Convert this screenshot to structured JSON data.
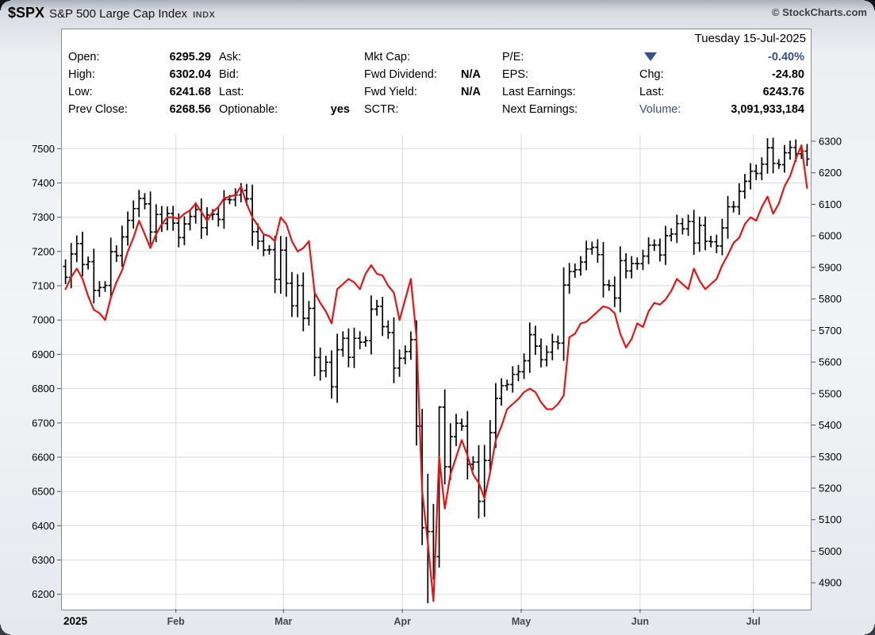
{
  "header": {
    "symbol": "$SPX",
    "name": "S&P 500 Large Cap Index",
    "exchange": "INDX",
    "credit": "© StockCharts.com"
  },
  "quote_panel": {
    "date": "Tuesday 15-Jul-2025",
    "col1": [
      {
        "label": "Open:",
        "value": "6295.29"
      },
      {
        "label": "High:",
        "value": "6302.04"
      },
      {
        "label": "Low:",
        "value": "6241.68"
      },
      {
        "label": "Prev Close:",
        "value": "6268.56"
      }
    ],
    "col2": [
      {
        "label": "Ask:",
        "value": ""
      },
      {
        "label": "Bid:",
        "value": ""
      },
      {
        "label": "Last:",
        "value": ""
      },
      {
        "label": "Optionable:",
        "value": "yes"
      }
    ],
    "col3": [
      {
        "label": "Mkt Cap:",
        "value": ""
      },
      {
        "label": "Fwd Dividend:",
        "value": "N/A"
      },
      {
        "label": "Fwd Yield:",
        "value": "N/A"
      },
      {
        "label": "SCTR:",
        "value": ""
      }
    ],
    "col4": [
      {
        "label": "P/E:",
        "value": ""
      },
      {
        "label": "EPS:",
        "value": ""
      },
      {
        "label": "Last Earnings:",
        "value": ""
      },
      {
        "label": "Next Earnings:",
        "value": ""
      }
    ],
    "col5": [
      {
        "label": "",
        "value": "-0.40%",
        "icon": "down-triangle"
      },
      {
        "label": "Chg:",
        "value": "-24.80"
      },
      {
        "label": "Last:",
        "value": "6243.76"
      },
      {
        "label": "Volume:",
        "value": "3,091,933,184"
      }
    ]
  },
  "chart_data": {
    "type": "ohlc",
    "title": "$SPX S&P 500 Large Cap Index INDX",
    "date_shown": "Tuesday 15-Jul-2025",
    "grid": true,
    "colors": {
      "bars": "#000000",
      "overlay": "#e81414",
      "grid": "#d8dadd",
      "change_navy": "#33518f"
    },
    "left_axis": {
      "min": 6160,
      "max": 7540,
      "ticks": [
        6200,
        6300,
        6400,
        6500,
        6600,
        6700,
        6800,
        6900,
        7000,
        7100,
        7200,
        7300,
        7400,
        7500
      ]
    },
    "right_axis": {
      "min": 4820,
      "max": 6320,
      "ticks": [
        4900,
        5000,
        5100,
        5200,
        5300,
        5400,
        5500,
        5600,
        5700,
        5800,
        5900,
        6000,
        6100,
        6200,
        6300
      ]
    },
    "x_axis": {
      "labels": [
        "2025",
        "Feb",
        "Mar",
        "Apr",
        "May",
        "Jun",
        "Jul"
      ],
      "month_start_indices": [
        0,
        20,
        39,
        60,
        81,
        102,
        122
      ]
    },
    "spx": {
      "name": "S&P 500 ($SPX) daily OHLC, right axis",
      "first_open": 5903.3,
      "closes": [
        5868.6,
        5942.5,
        5975.4,
        5909.0,
        5918.3,
        5827.0,
        5836.2,
        5842.9,
        5949.9,
        5937.3,
        5996.7,
        6049.2,
        6086.4,
        6118.7,
        6101.2,
        6012.3,
        6067.7,
        6039.3,
        6071.2,
        6040.5,
        5994.6,
        6037.9,
        6061.5,
        6083.6,
        6026.0,
        6066.4,
        6068.5,
        6052.0,
        6115.1,
        6114.6,
        6129.6,
        6144.2,
        6117.5,
        6013.1,
        5983.3,
        5955.3,
        5956.1,
        5861.6,
        5954.5,
        5849.7,
        5778.2,
        5842.6,
        5738.5,
        5770.2,
        5614.6,
        5572.1,
        5599.3,
        5521.5,
        5638.9,
        5675.1,
        5614.7,
        5675.3,
        5662.9,
        5667.6,
        5767.6,
        5776.7,
        5712.2,
        5693.3,
        5580.9,
        5611.9,
        5633.1,
        5671.0,
        5396.5,
        5074.1,
        5062.3,
        4982.8,
        5456.9,
        5268.1,
        5363.4,
        5406.0,
        5396.6,
        5275.7,
        5282.7,
        5158.2,
        5287.8,
        5375.9,
        5484.8,
        5525.2,
        5528.8,
        5560.8,
        5569.1,
        5604.1,
        5686.7,
        5650.4,
        5606.9,
        5631.3,
        5663.9,
        5659.9,
        5844.2,
        5886.6,
        5892.6,
        5916.9,
        5958.4,
        5963.6,
        5940.5,
        5844.6,
        5842.0,
        5802.8,
        5921.5,
        5888.6,
        5912.2,
        5911.7,
        5935.9,
        5970.4,
        5970.8,
        5939.3,
        6000.4,
        6005.9,
        6038.8,
        6022.2,
        6045.3,
        5977.0,
        6033.1,
        5982.7,
        5980.9,
        5967.8,
        6025.2,
        6092.2,
        6092.2,
        6141.0,
        6173.1,
        6205.0,
        6198.0,
        6227.4,
        6279.4,
        6230.0,
        6225.5,
        6263.3,
        6280.5,
        6259.8,
        6268.6,
        6243.8
      ],
      "hl_overrides": {
        "64": [
          4835,
          5246
        ],
        "65": [
          4910,
          5150
        ],
        "66": [
          4948,
          5460
        ]
      }
    },
    "overlay": {
      "name": "red comparison line, left axis",
      "anchors": [
        [
          0,
          7090
        ],
        [
          2,
          7150
        ],
        [
          5,
          7030
        ],
        [
          7,
          7000
        ],
        [
          9,
          7110
        ],
        [
          11,
          7200
        ],
        [
          13,
          7290
        ],
        [
          15,
          7210
        ],
        [
          17,
          7280
        ],
        [
          19,
          7300
        ],
        [
          21,
          7310
        ],
        [
          23,
          7340
        ],
        [
          25,
          7290
        ],
        [
          27,
          7330
        ],
        [
          29,
          7360
        ],
        [
          31,
          7390
        ],
        [
          33,
          7300
        ],
        [
          35,
          7250
        ],
        [
          37,
          7230
        ],
        [
          38,
          7300
        ],
        [
          39,
          7280
        ],
        [
          41,
          7200
        ],
        [
          43,
          7230
        ],
        [
          44,
          7080
        ],
        [
          45,
          7050
        ],
        [
          47,
          6990
        ],
        [
          48,
          7090
        ],
        [
          50,
          7120
        ],
        [
          52,
          7090
        ],
        [
          54,
          7160
        ],
        [
          56,
          7130
        ],
        [
          58,
          7080
        ],
        [
          59,
          7000
        ],
        [
          60,
          7060
        ],
        [
          61,
          7120
        ],
        [
          62,
          6950
        ],
        [
          63,
          6500
        ],
        [
          64,
          6350
        ],
        [
          65,
          6180
        ],
        [
          66,
          6600
        ],
        [
          67,
          6450
        ],
        [
          68,
          6550
        ],
        [
          70,
          6650
        ],
        [
          72,
          6550
        ],
        [
          74,
          6480
        ],
        [
          76,
          6650
        ],
        [
          78,
          6740
        ],
        [
          80,
          6770
        ],
        [
          82,
          6800
        ],
        [
          84,
          6760
        ],
        [
          86,
          6740
        ],
        [
          88,
          6780
        ],
        [
          89,
          6950
        ],
        [
          91,
          6990
        ],
        [
          93,
          7010
        ],
        [
          95,
          7040
        ],
        [
          97,
          7020
        ],
        [
          98,
          6960
        ],
        [
          99,
          6920
        ],
        [
          101,
          6990
        ],
        [
          102,
          6980
        ],
        [
          104,
          7050
        ],
        [
          106,
          7060
        ],
        [
          108,
          7120
        ],
        [
          110,
          7090
        ],
        [
          111,
          7150
        ],
        [
          113,
          7090
        ],
        [
          115,
          7120
        ],
        [
          117,
          7190
        ],
        [
          119,
          7240
        ],
        [
          120,
          7280
        ],
        [
          121,
          7300
        ],
        [
          122,
          7290
        ],
        [
          123,
          7330
        ],
        [
          124,
          7360
        ],
        [
          125,
          7310
        ],
        [
          126,
          7340
        ],
        [
          127,
          7390
        ],
        [
          128,
          7420
        ],
        [
          129,
          7470
        ],
        [
          130,
          7510
        ],
        [
          131,
          7385
        ]
      ]
    }
  }
}
